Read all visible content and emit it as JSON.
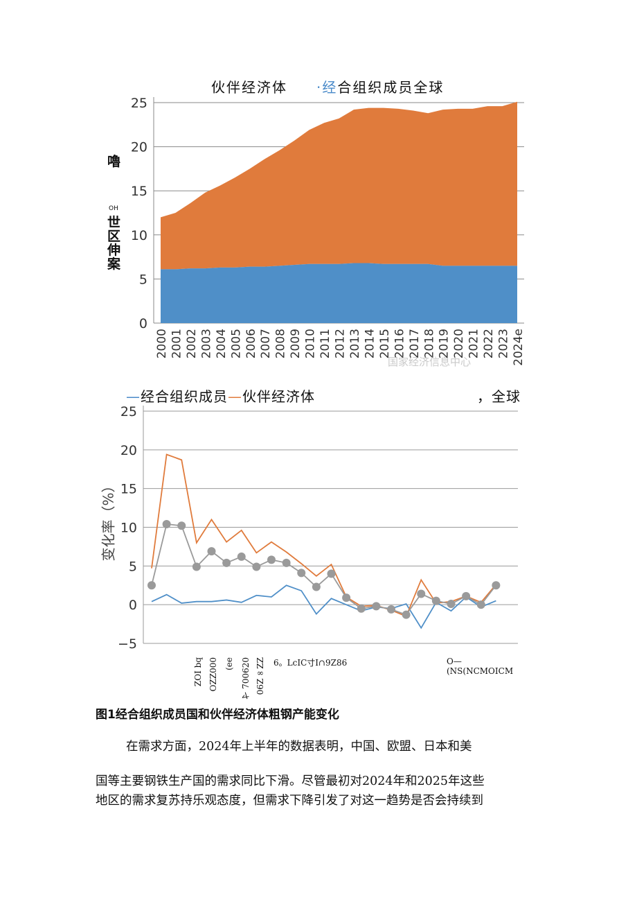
{
  "chart1": {
    "legend_text": "伙伴经济体",
    "legend_dot": "·",
    "legend_blue": "经",
    "legend_rest": "合组织成员全球",
    "ylabel_a": "嚕",
    "ylabel_b": "OH",
    "ylabel_c": "世",
    "ylabel_d": "区",
    "ylabel_e": "伸",
    "ylabel_f": "案",
    "watermark": "国家经济信息中心",
    "colors": {
      "oecd": "#4f8fc8",
      "partner": "#e07b3c"
    }
  },
  "chart2": {
    "legend_oecd_dash": "—",
    "legend_oecd": "经合组织成员",
    "legend_partner_dash": "—",
    "legend_partner": "伙伴经济体",
    "legend_global": "，全球",
    "ylabel": "变化率（%）",
    "xjunk_1": "ZOI bq",
    "xjunk_2": "OZZ000",
    "xjunk_3": "(ee",
    "xjunk_4": "ヤ 700620",
    "xjunk_5": "06Z∞ZZ",
    "xjunk_6": "6。LcIC寸I∩9Z86",
    "xjunk_7": "O—",
    "xjunk_8": "(NS(NCMOICM",
    "colors": {
      "oecd": "#4f8fc8",
      "partner": "#e07b3c",
      "global": "#9a9a9a"
    }
  },
  "caption": "图1经合组织成员国和伙伴经济体粗钢产能变化",
  "paragraph": {
    "line1": "在需求方面，2024年上半年的数据表明，中国、欧盟、日本和美",
    "line2": "国等主要钢铁生产国的需求同比下滑。尽管最初对2024年和2025年这些",
    "line3": "地区的需求复苏持乐观态度，但需求下降引发了对这一趋势是否会持续到"
  },
  "chart_data": [
    {
      "type": "area",
      "stacked": true,
      "x": [
        "2000",
        "2001",
        "2002",
        "2003",
        "2004",
        "2005",
        "2006",
        "2007",
        "2008",
        "2009",
        "2010",
        "2011",
        "2012",
        "2013",
        "2014",
        "2015",
        "2016",
        "2017",
        "2018",
        "2019",
        "2020",
        "2021",
        "2022",
        "2023",
        "2024e"
      ],
      "series": [
        {
          "name": "经合组织成员",
          "values": [
            6.1,
            6.1,
            6.2,
            6.2,
            6.3,
            6.3,
            6.4,
            6.4,
            6.5,
            6.6,
            6.7,
            6.7,
            6.7,
            6.8,
            6.8,
            6.7,
            6.7,
            6.7,
            6.7,
            6.5,
            6.5,
            6.5,
            6.5,
            6.5,
            6.5
          ]
        },
        {
          "name": "伙伴经济体",
          "values": [
            5.9,
            6.4,
            7.4,
            8.6,
            9.3,
            10.2,
            11.1,
            12.2,
            13.1,
            14.1,
            15.2,
            16.0,
            16.5,
            17.4,
            17.6,
            17.7,
            17.6,
            17.4,
            17.1,
            17.7,
            17.8,
            17.8,
            18.1,
            18.1,
            18.6
          ]
        }
      ],
      "ylim": [
        0,
        25
      ],
      "yticks": [
        0,
        5,
        10,
        15,
        20,
        25
      ],
      "grid": true,
      "legend": "top"
    },
    {
      "type": "line",
      "x": [
        "2000",
        "2001",
        "2002",
        "2003",
        "2004",
        "2005",
        "2006",
        "2007",
        "2008",
        "2009",
        "2010",
        "2011",
        "2012",
        "2013",
        "2014",
        "2015",
        "2016",
        "2017",
        "2018",
        "2019",
        "2020",
        "2021",
        "2022",
        "2023",
        "2024"
      ],
      "series": [
        {
          "name": "经合组织成员",
          "values": [
            0.4,
            1.3,
            0.2,
            0.4,
            0.4,
            0.6,
            0.3,
            1.2,
            1.0,
            2.5,
            1.8,
            -1.2,
            0.8,
            0.0,
            -0.8,
            -0.3,
            -0.5,
            0.1,
            -3.0,
            0.3,
            -0.8,
            1.0,
            -0.3,
            0.5,
            null
          ]
        },
        {
          "name": "伙伴经济体",
          "values": [
            4.7,
            19.4,
            18.7,
            8.0,
            11.0,
            8.1,
            9.6,
            6.7,
            8.1,
            6.8,
            5.3,
            3.7,
            5.2,
            1.0,
            -0.2,
            -0.1,
            -0.7,
            -1.5,
            3.2,
            0.2,
            0.4,
            1.1,
            0.3,
            2.6,
            null
          ]
        },
        {
          "name": "全球",
          "values": [
            2.5,
            10.4,
            10.2,
            4.9,
            6.9,
            5.4,
            6.2,
            4.9,
            5.8,
            5.4,
            4.1,
            2.3,
            4.0,
            0.9,
            -0.5,
            -0.2,
            -0.6,
            -1.3,
            1.4,
            0.5,
            0.1,
            1.1,
            0.0,
            2.5,
            null
          ]
        }
      ],
      "ylim": [
        -5,
        25
      ],
      "yticks": [
        -5,
        0,
        5,
        10,
        15,
        20,
        25
      ],
      "grid": true,
      "legend": "top"
    }
  ]
}
